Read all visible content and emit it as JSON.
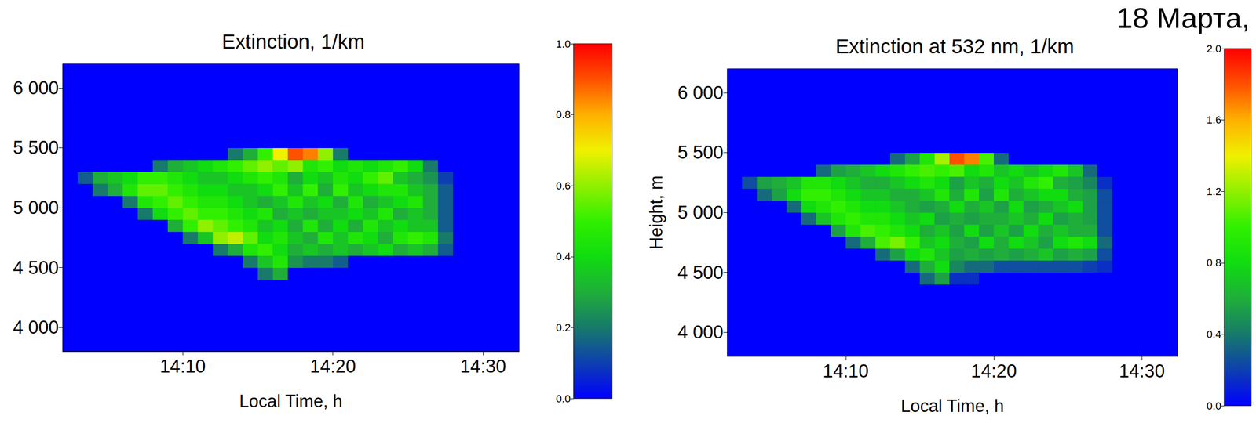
{
  "chart_data": [
    {
      "type": "heatmap",
      "title": "Extinction, 1/km",
      "x_label": "Local Time, h",
      "xlim": [
        842,
        872.4
      ],
      "xticks": [
        {
          "value": 850,
          "label": "14:10"
        },
        {
          "value": 860,
          "label": "14:20"
        },
        {
          "value": 870,
          "label": "14:30"
        }
      ],
      "ylim": [
        3800,
        6200
      ],
      "yticks": [
        {
          "value": 4000,
          "label": "4 000"
        },
        {
          "value": 4500,
          "label": "4 500"
        },
        {
          "value": 5000,
          "label": "5 000"
        },
        {
          "value": 5500,
          "label": "5 500"
        },
        {
          "value": 6000,
          "label": "6 000"
        }
      ],
      "x": [
        843.5,
        844.5,
        845.5,
        846.5,
        847.5,
        848.5,
        849.5,
        850.5,
        851.5,
        852.5,
        853.5,
        854.5,
        855.5,
        856.5,
        857.5,
        858.5,
        859.5,
        860.5,
        861.5,
        862.5,
        863.5,
        864.5,
        865.5,
        866.5,
        867.5,
        868.5,
        869.5
      ],
      "y": [
        4350,
        4450,
        4550,
        4650,
        4750,
        4850,
        4950,
        5050,
        5150,
        5250,
        5350,
        5450,
        5550
      ],
      "values": [
        [
          0,
          0,
          0,
          0,
          0,
          0,
          0,
          0,
          0,
          0,
          0,
          0,
          0,
          0,
          0,
          0,
          0,
          0,
          0,
          0,
          0,
          0,
          0,
          0,
          0,
          0,
          0
        ],
        [
          0,
          0,
          0,
          0,
          0,
          0,
          0,
          0,
          0,
          0,
          0,
          0,
          0.2,
          0.3,
          0,
          0,
          0,
          0,
          0,
          0,
          0,
          0,
          0,
          0,
          0,
          0,
          0
        ],
        [
          0,
          0,
          0,
          0,
          0,
          0,
          0,
          0,
          0,
          0,
          0,
          0.2,
          0.35,
          0.45,
          0.25,
          0.2,
          0.2,
          0.15,
          0,
          0,
          0,
          0,
          0,
          0,
          0,
          0,
          0
        ],
        [
          0,
          0,
          0,
          0,
          0,
          0,
          0,
          0,
          0,
          0.2,
          0.3,
          0.45,
          0.5,
          0.4,
          0.3,
          0.35,
          0.3,
          0.35,
          0.3,
          0.35,
          0.4,
          0.3,
          0.35,
          0.3,
          0.15,
          0,
          0
        ],
        [
          0,
          0,
          0,
          0,
          0,
          0,
          0,
          0.2,
          0.35,
          0.6,
          0.65,
          0.55,
          0.4,
          0.45,
          0.35,
          0.3,
          0.45,
          0.35,
          0.45,
          0.4,
          0.3,
          0.45,
          0.5,
          0.45,
          0.2,
          0,
          0
        ],
        [
          0,
          0,
          0,
          0,
          0,
          0,
          0.3,
          0.5,
          0.6,
          0.55,
          0.5,
          0.45,
          0.35,
          0.4,
          0.3,
          0.45,
          0.3,
          0.4,
          0.3,
          0.45,
          0.35,
          0.4,
          0.35,
          0.35,
          0.15,
          0,
          0
        ],
        [
          0,
          0,
          0,
          0,
          0.2,
          0.4,
          0.5,
          0.55,
          0.5,
          0.5,
          0.45,
          0.4,
          0.45,
          0.3,
          0.35,
          0.3,
          0.35,
          0.35,
          0.4,
          0.35,
          0.45,
          0.3,
          0.35,
          0.3,
          0.15,
          0,
          0
        ],
        [
          0,
          0,
          0,
          0.2,
          0.45,
          0.5,
          0.55,
          0.5,
          0.45,
          0.45,
          0.4,
          0.35,
          0.3,
          0.35,
          0.45,
          0.35,
          0.4,
          0.3,
          0.45,
          0.3,
          0.35,
          0.4,
          0.45,
          0.3,
          0.15,
          0,
          0
        ],
        [
          0,
          0.2,
          0.3,
          0.45,
          0.55,
          0.55,
          0.5,
          0.45,
          0.4,
          0.4,
          0.35,
          0.35,
          0.4,
          0.5,
          0.35,
          0.5,
          0.3,
          0.5,
          0.35,
          0.4,
          0.45,
          0.45,
          0.35,
          0.3,
          0.15,
          0,
          0
        ],
        [
          0.15,
          0.3,
          0.35,
          0.4,
          0.5,
          0.5,
          0.45,
          0.4,
          0.35,
          0.35,
          0.4,
          0.45,
          0.5,
          0.45,
          0.3,
          0.4,
          0.35,
          0.45,
          0.4,
          0.5,
          0.55,
          0.35,
          0.3,
          0.25,
          0.1,
          0,
          0
        ],
        [
          0,
          0,
          0,
          0,
          0,
          0.2,
          0.3,
          0.35,
          0.4,
          0.45,
          0.5,
          0.55,
          0.6,
          0.55,
          0.6,
          0.45,
          0.5,
          0.4,
          0.45,
          0.4,
          0.45,
          0.5,
          0.4,
          0.2,
          0,
          0,
          0
        ],
        [
          0,
          0,
          0,
          0,
          0,
          0,
          0,
          0,
          0,
          0,
          0.2,
          0.3,
          0.5,
          0.7,
          0.9,
          0.85,
          0.6,
          0.2,
          0,
          0,
          0,
          0,
          0,
          0,
          0,
          0,
          0
        ],
        [
          0,
          0,
          0,
          0,
          0,
          0,
          0,
          0,
          0,
          0,
          0,
          0,
          0,
          0,
          0,
          0,
          0,
          0,
          0,
          0,
          0,
          0,
          0,
          0,
          0,
          0,
          0
        ]
      ],
      "colorbar": {
        "range": [
          0,
          1
        ],
        "ticks": [
          {
            "value": 0,
            "label": "0.0"
          },
          0.2,
          0.4,
          0.6,
          0.8,
          {
            "value": 1,
            "label": "1.0"
          }
        ]
      }
    },
    {
      "type": "heatmap",
      "title": "Extinction at 532 nm, 1/km",
      "annotation": "18 Марта,",
      "x_label": "Local Time, h",
      "y_label": "Height, m",
      "xlim": [
        842,
        872.4
      ],
      "xticks": [
        {
          "value": 850,
          "label": "14:10"
        },
        {
          "value": 860,
          "label": "14:20"
        },
        {
          "value": 870,
          "label": "14:30"
        }
      ],
      "ylim": [
        3800,
        6200
      ],
      "yticks": [
        {
          "value": 4000,
          "label": "4 000"
        },
        {
          "value": 4500,
          "label": "4 500"
        },
        {
          "value": 5000,
          "label": "5 000"
        },
        {
          "value": 5500,
          "label": "5 500"
        },
        {
          "value": 6000,
          "label": "6 000"
        }
      ],
      "x": [
        843.5,
        844.5,
        845.5,
        846.5,
        847.5,
        848.5,
        849.5,
        850.5,
        851.5,
        852.5,
        853.5,
        854.5,
        855.5,
        856.5,
        857.5,
        858.5,
        859.5,
        860.5,
        861.5,
        862.5,
        863.5,
        864.5,
        865.5,
        866.5,
        867.5,
        868.5,
        869.5
      ],
      "y": [
        4350,
        4450,
        4550,
        4650,
        4750,
        4850,
        4950,
        5050,
        5150,
        5250,
        5350,
        5450,
        5550
      ],
      "values": [
        [
          0,
          0,
          0,
          0,
          0,
          0,
          0,
          0,
          0,
          0,
          0,
          0,
          0,
          0,
          0,
          0,
          0,
          0,
          0,
          0,
          0,
          0,
          0,
          0,
          0,
          0,
          0
        ],
        [
          0,
          0,
          0,
          0,
          0,
          0,
          0,
          0,
          0,
          0,
          0,
          0,
          0.35,
          0.55,
          0.15,
          0.15,
          0,
          0,
          0,
          0,
          0,
          0,
          0,
          0,
          0,
          0,
          0
        ],
        [
          0,
          0,
          0,
          0,
          0,
          0,
          0,
          0,
          0,
          0,
          0,
          0.35,
          0.6,
          0.8,
          0.45,
          0.35,
          0.35,
          0.25,
          0.25,
          0.25,
          0.25,
          0.25,
          0.25,
          0.2,
          0.15,
          0,
          0
        ],
        [
          0,
          0,
          0,
          0,
          0,
          0,
          0,
          0,
          0,
          0.35,
          0.55,
          0.8,
          0.9,
          0.7,
          0.55,
          0.6,
          0.55,
          0.6,
          0.55,
          0.6,
          0.7,
          0.55,
          0.6,
          0.55,
          0.25,
          0,
          0
        ],
        [
          0,
          0,
          0,
          0,
          0,
          0,
          0,
          0.35,
          0.6,
          1.05,
          1.15,
          1.0,
          0.7,
          0.8,
          0.6,
          0.55,
          0.8,
          0.6,
          0.8,
          0.7,
          0.55,
          0.8,
          0.9,
          0.8,
          0.35,
          0,
          0
        ],
        [
          0,
          0,
          0,
          0,
          0,
          0,
          0.55,
          0.9,
          1.05,
          1.0,
          0.9,
          0.8,
          0.6,
          0.7,
          0.55,
          0.8,
          0.55,
          0.7,
          0.55,
          0.8,
          0.6,
          0.7,
          0.6,
          0.6,
          0.25,
          0,
          0
        ],
        [
          0,
          0,
          0,
          0,
          0.35,
          0.7,
          0.9,
          1.0,
          0.9,
          0.9,
          0.8,
          0.7,
          0.8,
          0.55,
          0.6,
          0.55,
          0.6,
          0.6,
          0.7,
          0.6,
          0.8,
          0.55,
          0.6,
          0.55,
          0.25,
          0,
          0
        ],
        [
          0,
          0,
          0,
          0.35,
          0.8,
          0.9,
          1.0,
          0.9,
          0.8,
          0.8,
          0.7,
          0.6,
          0.55,
          0.6,
          0.8,
          0.6,
          0.7,
          0.55,
          0.8,
          0.55,
          0.6,
          0.7,
          0.8,
          0.55,
          0.25,
          0,
          0
        ],
        [
          0,
          0.35,
          0.55,
          0.8,
          1.0,
          1.0,
          0.9,
          0.8,
          0.7,
          0.7,
          0.6,
          0.6,
          0.7,
          0.9,
          0.6,
          0.9,
          0.55,
          0.9,
          0.6,
          0.7,
          0.8,
          0.8,
          0.6,
          0.55,
          0.25,
          0,
          0
        ],
        [
          0.25,
          0.55,
          0.6,
          0.7,
          0.9,
          0.9,
          0.8,
          0.7,
          0.6,
          0.6,
          0.7,
          0.8,
          0.9,
          0.8,
          0.55,
          0.7,
          0.6,
          0.8,
          0.7,
          0.9,
          1.0,
          0.6,
          0.55,
          0.45,
          0.15,
          0,
          0
        ],
        [
          0,
          0,
          0,
          0,
          0,
          0.35,
          0.55,
          0.6,
          0.7,
          0.8,
          0.9,
          1.0,
          1.05,
          1.0,
          1.05,
          0.8,
          0.9,
          0.7,
          0.8,
          0.7,
          0.8,
          0.9,
          0.7,
          0.35,
          0,
          0,
          0
        ],
        [
          0,
          0,
          0,
          0,
          0,
          0,
          0,
          0,
          0,
          0,
          0.35,
          0.55,
          0.9,
          1.25,
          1.8,
          1.7,
          1.05,
          0.35,
          0,
          0,
          0,
          0,
          0,
          0,
          0,
          0,
          0
        ],
        [
          0,
          0,
          0,
          0,
          0,
          0,
          0,
          0,
          0,
          0,
          0,
          0,
          0,
          0,
          0,
          0,
          0,
          0,
          0,
          0,
          0,
          0,
          0,
          0,
          0,
          0,
          0
        ]
      ],
      "colorbar": {
        "range": [
          0,
          2
        ],
        "ticks": [
          {
            "value": 0,
            "label": "0.0"
          },
          0.4,
          0.8,
          1.2,
          1.6,
          {
            "value": 2,
            "label": "2.0"
          }
        ]
      }
    }
  ]
}
